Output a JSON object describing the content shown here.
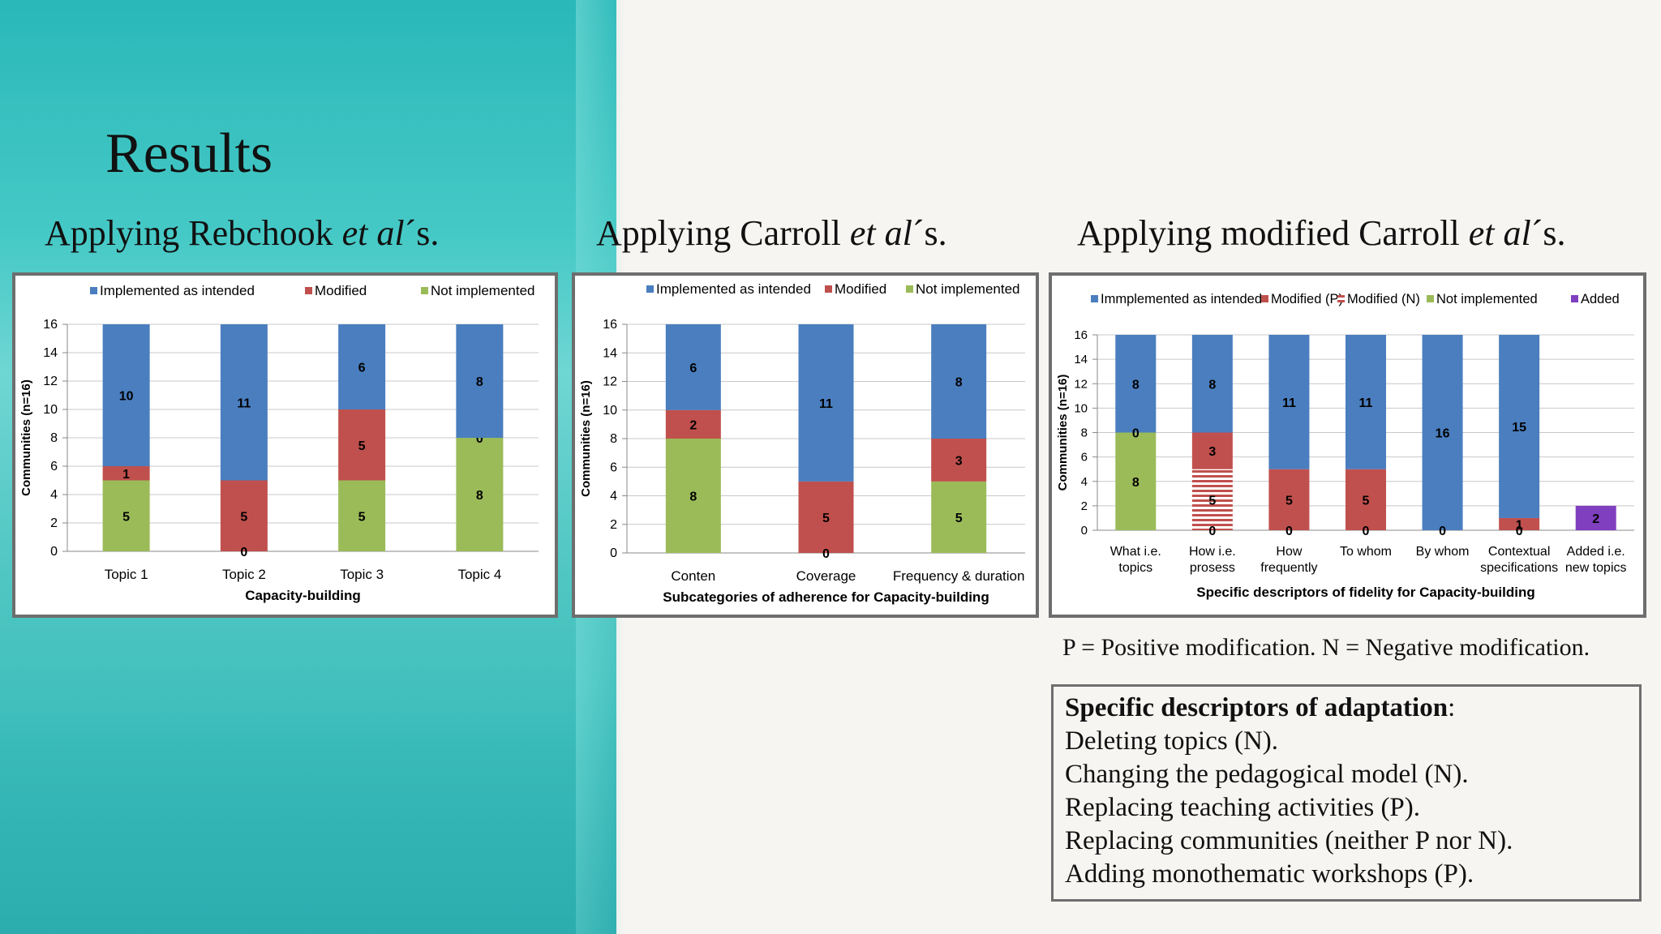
{
  "slide": {
    "title": "Results",
    "subtitles": [
      {
        "lead": "Applying Rebchook ",
        "em": "et al",
        "tail": "´s."
      },
      {
        "lead": "Applying Carroll ",
        "em": "et al",
        "tail": "´s."
      },
      {
        "lead": "Applying modified Carroll ",
        "em": "et al",
        "tail": "´s."
      }
    ],
    "note": "P = Positive modification. N = Negative modification.",
    "descriptors": {
      "heading": "Specific descriptors of adaptation",
      "heading_suffix": ":",
      "items": [
        "Deleting topics (N).",
        "Changing the pedagogical model (N).",
        "Replacing teaching activities (P).",
        "Replacing communities (neither P nor N).",
        "Adding monothematic workshops (P)."
      ]
    }
  },
  "colors": {
    "implemented": "#4a7ebf",
    "modified": "#c0504d",
    "modified_n": "#c0504d",
    "not_implemented": "#9bbb59",
    "added": "#7f3fbf"
  },
  "chart_data": [
    {
      "type": "bar",
      "stacked": true,
      "categories": [
        "Topic 1",
        "Topic 2",
        "Topic 3",
        "Topic 4"
      ],
      "series": [
        {
          "name": "Not implemented",
          "color_key": "not_implemented",
          "values": [
            5,
            0,
            5,
            8
          ],
          "labels": [
            "5",
            "",
            "5",
            "8"
          ]
        },
        {
          "name": "Modified",
          "color_key": "modified",
          "values": [
            1,
            5,
            5,
            0
          ],
          "labels": [
            "1",
            "5",
            "5",
            "0"
          ]
        },
        {
          "name": "Implemented as intended",
          "color_key": "implemented",
          "values": [
            10,
            11,
            6,
            8
          ],
          "labels": [
            "10",
            "11",
            "6",
            "8"
          ]
        }
      ],
      "extra_labels": [
        {
          "category": 1,
          "text": "0"
        }
      ],
      "legend_order": [
        "Implemented as intended",
        "Modified",
        "Not implemented"
      ],
      "ylabel": "Communities (n=16)",
      "xlabel": "Capacity-building",
      "ylim": [
        0,
        16
      ],
      "yticks": [
        "0",
        "2",
        "4",
        "6",
        "8",
        "10",
        "12",
        "14",
        "16"
      ],
      "grid": true,
      "legend": "top"
    },
    {
      "type": "bar",
      "stacked": true,
      "categories": [
        "Conten",
        "Coverage",
        "Frequency & duration"
      ],
      "series": [
        {
          "name": "Not implemented",
          "color_key": "not_implemented",
          "values": [
            8,
            0,
            5
          ],
          "labels": [
            "8",
            "",
            "5"
          ]
        },
        {
          "name": "Modified",
          "color_key": "modified",
          "values": [
            2,
            5,
            3
          ],
          "labels": [
            "2",
            "5",
            "3"
          ]
        },
        {
          "name": "Implemented as intended",
          "color_key": "implemented",
          "values": [
            6,
            11,
            8
          ],
          "labels": [
            "6",
            "11",
            "8"
          ]
        }
      ],
      "extra_labels": [
        {
          "category": 1,
          "text": "0"
        }
      ],
      "legend_order": [
        "Implemented as intended",
        "Modified",
        "Not implemented"
      ],
      "ylabel": "Communities (n=16)",
      "xlabel": "Subcategories of adherence for Capacity-building",
      "ylim": [
        0,
        16
      ],
      "yticks": [
        "0",
        "2",
        "4",
        "6",
        "8",
        "10",
        "12",
        "14",
        "16"
      ],
      "grid": true,
      "legend": "top"
    },
    {
      "type": "bar",
      "stacked": true,
      "categories": [
        [
          "What i.e.",
          "topics"
        ],
        [
          "How i.e.",
          "prosess"
        ],
        [
          "How",
          "frequently"
        ],
        [
          "To whom"
        ],
        [
          "By whom"
        ],
        [
          "Contextual",
          "specifications"
        ],
        [
          "Added i.e.",
          "new topics"
        ]
      ],
      "series": [
        {
          "name": "Not implemented",
          "color_key": "not_implemented",
          "values": [
            8,
            0,
            0,
            0,
            0,
            0,
            0
          ],
          "labels": [
            "8",
            "",
            "",
            "",
            "",
            "",
            ""
          ]
        },
        {
          "name": "Modified (N)",
          "color_key": "modified_n",
          "hatched": true,
          "values": [
            0,
            5,
            0,
            0,
            0,
            0,
            0
          ],
          "labels": [
            "",
            "5",
            "",
            "",
            "",
            "",
            ""
          ]
        },
        {
          "name": "Modified (P)",
          "color_key": "modified",
          "values": [
            0,
            3,
            5,
            5,
            0,
            1,
            0
          ],
          "labels": [
            "",
            "3",
            "5",
            "5",
            "",
            "1",
            ""
          ]
        },
        {
          "name": "Immplemented as intended",
          "color_key": "implemented",
          "values": [
            8,
            8,
            11,
            11,
            16,
            15,
            0
          ],
          "labels": [
            "8",
            "8",
            "11",
            "11",
            "16",
            "15",
            ""
          ]
        },
        {
          "name": "Added",
          "color_key": "added",
          "values": [
            0,
            0,
            0,
            0,
            0,
            0,
            2
          ],
          "labels": [
            "",
            "",
            "",
            "",
            "",
            "",
            "2"
          ]
        }
      ],
      "extra_labels": [
        {
          "category": 0,
          "text": "0",
          "at": 8
        },
        {
          "category": 1,
          "text": "0",
          "at": 0
        },
        {
          "category": 2,
          "text": "0",
          "at": 0
        },
        {
          "category": 3,
          "text": "0",
          "at": 0
        },
        {
          "category": 4,
          "text": "0",
          "at": 0
        },
        {
          "category": 5,
          "text": "0",
          "at": 0
        }
      ],
      "legend_order": [
        "Immplemented as intended",
        "Modified (P)",
        "Modified (N)",
        "Not implemented",
        "Added"
      ],
      "ylabel": "Communities (n=16)",
      "xlabel": "Specific descriptors of fidelity for Capacity-building",
      "ylim": [
        0,
        16
      ],
      "yticks": [
        "0",
        "2",
        "4",
        "6",
        "8",
        "10",
        "12",
        "14",
        "16"
      ],
      "grid": true,
      "legend": "top"
    }
  ]
}
